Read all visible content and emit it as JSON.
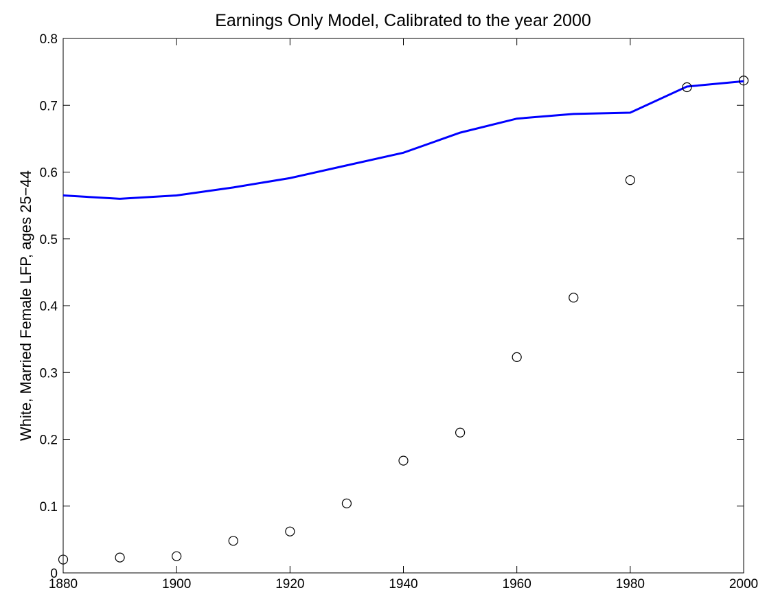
{
  "chart_data": {
    "type": "line",
    "title": "Earnings Only Model, Calibrated to the year 2000",
    "y_label": "White, Married Female LFP, ages 25−44",
    "x": [
      1880,
      1890,
      1900,
      1910,
      1920,
      1930,
      1940,
      1950,
      1960,
      1970,
      1980,
      1990,
      2000
    ],
    "series": [
      {
        "type": "line",
        "color": "#0000ff",
        "values": [
          0.565,
          0.56,
          0.565,
          0.577,
          0.591,
          0.61,
          0.629,
          0.659,
          0.68,
          0.687,
          0.689,
          0.728,
          0.736
        ]
      },
      {
        "type": "scatter",
        "color": "#000000",
        "values": [
          0.02,
          0.023,
          0.025,
          0.048,
          0.062,
          0.104,
          0.168,
          0.21,
          0.323,
          0.412,
          0.588,
          0.727,
          0.737
        ]
      }
    ],
    "xlim": [
      1880,
      2000
    ],
    "xticks": [
      1880,
      1900,
      1920,
      1940,
      1960,
      1980,
      2000
    ],
    "ylim": [
      0,
      0.8
    ],
    "yticks": [
      0,
      0.1,
      0.2,
      0.3,
      0.4,
      0.5,
      0.6,
      0.7,
      0.8
    ],
    "grid": false
  }
}
